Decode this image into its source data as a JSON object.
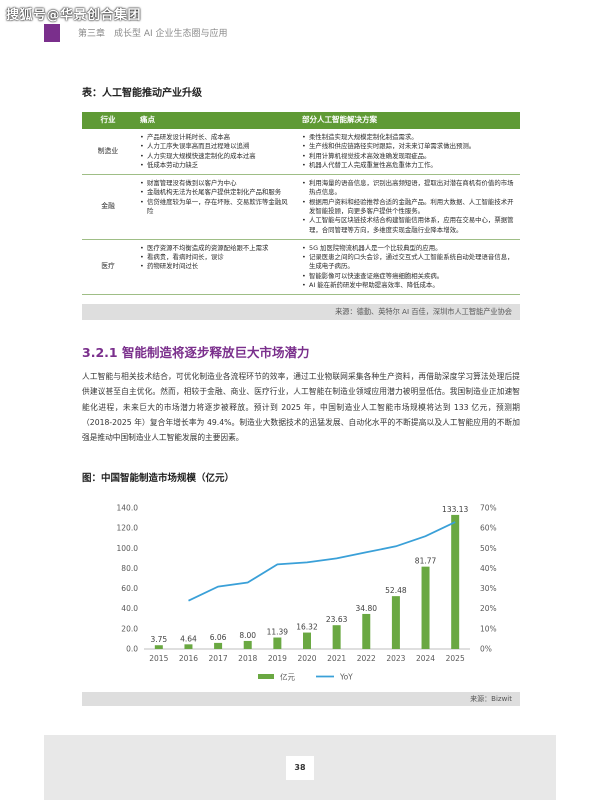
{
  "watermark": "搜狐号@华景创合集团",
  "chapter": "第三章　成长型 AI 企业生态圈与应用",
  "table": {
    "title": "表：人工智能推动产业升级",
    "headers": [
      "行业",
      "痛点",
      "部分人工智能解决方案"
    ],
    "rows": [
      {
        "industry": "制造业",
        "pains": [
          "产品研发设计耗时长、成本高",
          "人力工序失误率高而且过程难以追溯",
          "人力实现大规模快速定制化的成本过高",
          "低成本劳动力缺乏"
        ],
        "solutions": [
          "柔性制造实现大规模定制化制造需求。",
          "生产线和供应链路径实时跟踪，对未来订单需求做出预测。",
          "利用计算机视觉技术高效准确发现瑕疵品。",
          "机器人代替工人完成重复性高危重体力工作。"
        ]
      },
      {
        "industry": "金融",
        "pains": [
          "财富管理没有做到以客户为中心",
          "金融机构无法为长尾客户提供定制化产品和服务",
          "信贷维度较为单一，存在坏账、交易欺诈等金融风险"
        ],
        "solutions": [
          "利用海量的语音信息，识别出高频短语，提取出对潜在商机有价值的市场热点信息。",
          "根据用户资料和经验推荐合适的金融产品。利用大数据、人工智能技术开发智能投顾，向更多客户提供个性服务。",
          "人工智能与区块链技术结合构建智能信用体系，应用在交易中心，票据管理，合同管理等方向，多维度实现金融行业降本增效。"
        ]
      },
      {
        "industry": "医疗",
        "pains": [
          "医疗资源不均衡造成的资源配给跟不上需求",
          "看病贵，看病时间长，误诊",
          "药物研发时间过长"
        ],
        "solutions": [
          "5G 加医院物流机器人是一个比较典型的应用。",
          "记录医患之间的口头会诊，通过交互式人工智能系统自动处理语音信息，生成电子病历。",
          "智能影像可以快速查证癌症等癌细胞相关疾病。",
          "AI 能在新药研发中帮助提高效率、降低成本。"
        ]
      }
    ],
    "source": "来源：德勤、英特尔 AI 百佳，深圳市人工智能产业协会"
  },
  "section": {
    "title": "3.2.1 智能制造将逐步释放巨大市场潜力",
    "paragraph": "人工智能与相关技术结合，可优化制造业各流程环节的效率，通过工业物联网采集各种生产资料，再借助深度学习算法处理后提供建议甚至自主优化。然而，相较于金融、商业、医疗行业，人工智能在制造业领域应用潜力被明显低估。我国制造业正加速智能化进程，未来巨大的市场潜力将逐步被释放。预计到 2025 年，中国制造业人工智能市场规模将达到 133 亿元，预测期（2018-2025 年）复合年增长率为 49.4%。制造业大数据技术的迅猛发展、自动化水平的不断提高以及人工智能应用的不断加强是推动中国制造业人工智能发展的主要因素。"
  },
  "chart_data": {
    "type": "bar",
    "title": "图：中国智能制造市场规模（亿元）",
    "categories": [
      "2015",
      "2016",
      "2017",
      "2018",
      "2019",
      "2020",
      "2021",
      "2022",
      "2023",
      "2024",
      "2025"
    ],
    "series": [
      {
        "name": "亿元",
        "type": "bar",
        "axis": "left",
        "color": "#6aa842",
        "values": [
          3.75,
          4.64,
          6.06,
          8.0,
          11.39,
          16.32,
          23.63,
          34.8,
          52.48,
          81.77,
          133.13
        ],
        "labels": [
          "3.75",
          "4.64",
          "6.06",
          "8.00",
          "11.39",
          "16.32",
          "23.63",
          "34.80",
          "52.48",
          "81.77",
          "133.13"
        ]
      },
      {
        "name": "YoY",
        "type": "line",
        "axis": "right",
        "color": "#3aa0d8",
        "values": [
          null,
          24,
          31,
          33,
          42,
          43,
          45,
          48,
          51,
          56,
          63
        ]
      }
    ],
    "y_left": {
      "min": 0,
      "max": 140,
      "ticks": [
        "0.0",
        "20.0",
        "40.0",
        "60.0",
        "80.0",
        "100.0",
        "120.0",
        "140.0"
      ]
    },
    "y_right": {
      "min": 0,
      "max": 70,
      "ticks": [
        "0%",
        "10%",
        "20%",
        "30%",
        "40%",
        "50%",
        "60%",
        "70%"
      ]
    },
    "grid": false,
    "legend": "bottom-center",
    "source": "来源：Bizwit"
  },
  "page_number": "38",
  "colors": {
    "accent": "#7a2f8c",
    "header_green": "#5f9a35",
    "bar_green": "#6aa842",
    "line_blue": "#3aa0d8"
  }
}
